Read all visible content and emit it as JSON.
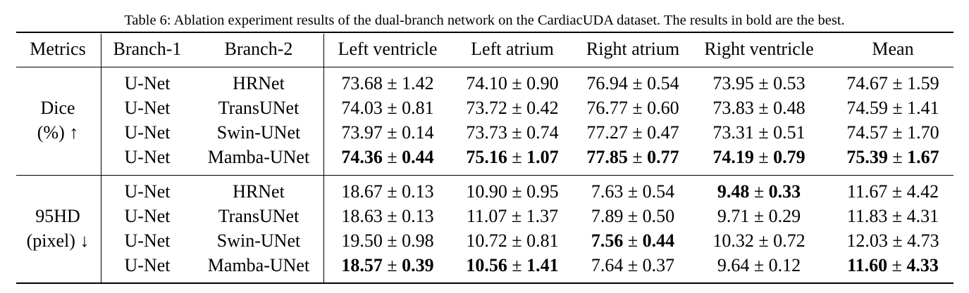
{
  "caption": "Table 6: Ablation experiment results of the dual-branch network on the CardiacUDA dataset. The results in bold are the best.",
  "header": [
    "Metrics",
    "Branch-1",
    "Branch-2",
    "Left ventricle",
    "Left atrium",
    "Right atrium",
    "Right ventricle",
    "Mean"
  ],
  "groups": [
    {
      "metric_line1": "Dice",
      "metric_line2": "(%) ↑",
      "rows": [
        {
          "b1": "U-Net",
          "b2": "HRNet",
          "vals": [
            {
              "m": "73.68",
              "s": "1.42",
              "bold": false
            },
            {
              "m": "74.10",
              "s": "0.90",
              "bold": false
            },
            {
              "m": "76.94",
              "s": "0.54",
              "bold": false
            },
            {
              "m": "73.95",
              "s": "0.53",
              "bold": false
            },
            {
              "m": "74.67",
              "s": "1.59",
              "bold": false
            }
          ]
        },
        {
          "b1": "U-Net",
          "b2": "TransUNet",
          "vals": [
            {
              "m": "74.03",
              "s": "0.81",
              "bold": false
            },
            {
              "m": "73.72",
              "s": "0.42",
              "bold": false
            },
            {
              "m": "76.77",
              "s": "0.60",
              "bold": false
            },
            {
              "m": "73.83",
              "s": "0.48",
              "bold": false
            },
            {
              "m": "74.59",
              "s": "1.41",
              "bold": false
            }
          ]
        },
        {
          "b1": "U-Net",
          "b2": "Swin-UNet",
          "vals": [
            {
              "m": "73.97",
              "s": "0.14",
              "bold": false
            },
            {
              "m": "73.73",
              "s": "0.74",
              "bold": false
            },
            {
              "m": "77.27",
              "s": "0.47",
              "bold": false
            },
            {
              "m": "73.31",
              "s": "0.51",
              "bold": false
            },
            {
              "m": "74.57",
              "s": "1.70",
              "bold": false
            }
          ]
        },
        {
          "b1": "U-Net",
          "b2": "Mamba-UNet",
          "vals": [
            {
              "m": "74.36",
              "s": "0.44",
              "bold": true
            },
            {
              "m": "75.16",
              "s": "1.07",
              "bold": true
            },
            {
              "m": "77.85",
              "s": "0.77",
              "bold": true
            },
            {
              "m": "74.19",
              "s": "0.79",
              "bold": true
            },
            {
              "m": "75.39",
              "s": "1.67",
              "bold": true
            }
          ]
        }
      ]
    },
    {
      "metric_line1": "95HD",
      "metric_line2": "(pixel) ↓",
      "rows": [
        {
          "b1": "U-Net",
          "b2": "HRNet",
          "vals": [
            {
              "m": "18.67",
              "s": "0.13",
              "bold": false
            },
            {
              "m": "10.90",
              "s": "0.95",
              "bold": false
            },
            {
              "m": "7.63",
              "s": "0.54",
              "bold": false
            },
            {
              "m": "9.48",
              "s": "0.33",
              "bold": true
            },
            {
              "m": "11.67",
              "s": "4.42",
              "bold": false
            }
          ]
        },
        {
          "b1": "U-Net",
          "b2": "TransUNet",
          "vals": [
            {
              "m": "18.63",
              "s": "0.13",
              "bold": false
            },
            {
              "m": "11.07",
              "s": "1.37",
              "bold": false
            },
            {
              "m": "7.89",
              "s": "0.50",
              "bold": false
            },
            {
              "m": "9.71",
              "s": "0.29",
              "bold": false
            },
            {
              "m": "11.83",
              "s": "4.31",
              "bold": false
            }
          ]
        },
        {
          "b1": "U-Net",
          "b2": "Swin-UNet",
          "vals": [
            {
              "m": "19.50",
              "s": "0.98",
              "bold": false
            },
            {
              "m": "10.72",
              "s": "0.81",
              "bold": false
            },
            {
              "m": "7.56",
              "s": "0.44",
              "bold": true
            },
            {
              "m": "10.32",
              "s": "0.72",
              "bold": false
            },
            {
              "m": "12.03",
              "s": "4.73",
              "bold": false
            }
          ]
        },
        {
          "b1": "U-Net",
          "b2": "Mamba-UNet",
          "vals": [
            {
              "m": "18.57",
              "s": "0.39",
              "bold": true
            },
            {
              "m": "10.56",
              "s": "1.41",
              "bold": true
            },
            {
              "m": "7.64",
              "s": "0.37",
              "bold": false
            },
            {
              "m": "9.64",
              "s": "0.12",
              "bold": false
            },
            {
              "m": "11.60",
              "s": "4.33",
              "bold": true
            }
          ]
        }
      ]
    }
  ]
}
